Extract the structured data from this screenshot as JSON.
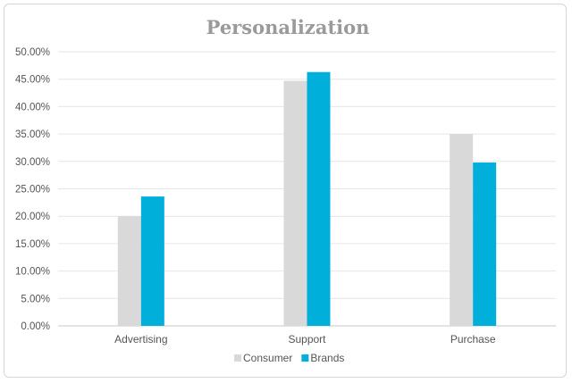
{
  "chart_data": {
    "type": "bar",
    "title": "Personalization",
    "xlabel": "",
    "ylabel": "",
    "categories": [
      "Advertising",
      "Support",
      "Purchase"
    ],
    "series": [
      {
        "name": "Consumer",
        "values": [
          20.0,
          44.7,
          35.0
        ],
        "color": "#d9d9d9"
      },
      {
        "name": "Brands",
        "values": [
          23.6,
          46.3,
          29.8
        ],
        "color": "#00b0db"
      }
    ],
    "ylim": [
      0,
      50
    ],
    "yticks": [
      "0.00%",
      "5.00%",
      "10.00%",
      "15.00%",
      "20.00%",
      "25.00%",
      "30.00%",
      "35.00%",
      "40.00%",
      "45.00%",
      "50.00%"
    ],
    "grid": true,
    "legend_position": "bottom"
  }
}
